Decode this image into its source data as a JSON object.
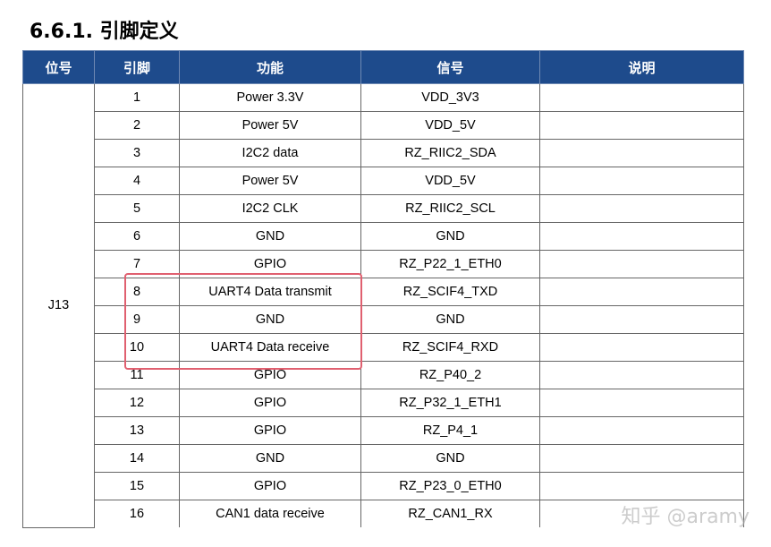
{
  "heading": "6.6.1. 引脚定义",
  "table": {
    "headers": [
      "位号",
      "引脚",
      "功能",
      "信号",
      "说明"
    ],
    "location": "J13",
    "rows": [
      {
        "pin": "1",
        "function": "Power 3.3V",
        "signal": "VDD_3V3",
        "note": ""
      },
      {
        "pin": "2",
        "function": "Power 5V",
        "signal": "VDD_5V",
        "note": ""
      },
      {
        "pin": "3",
        "function": "I2C2 data",
        "signal": "RZ_RIIC2_SDA",
        "note": ""
      },
      {
        "pin": "4",
        "function": "Power 5V",
        "signal": "VDD_5V",
        "note": ""
      },
      {
        "pin": "5",
        "function": "I2C2 CLK",
        "signal": "RZ_RIIC2_SCL",
        "note": ""
      },
      {
        "pin": "6",
        "function": "GND",
        "signal": "GND",
        "note": ""
      },
      {
        "pin": "7",
        "function": "GPIO",
        "signal": "RZ_P22_1_ETH0",
        "note": ""
      },
      {
        "pin": "8",
        "function": "UART4 Data transmit",
        "signal": "RZ_SCIF4_TXD",
        "note": ""
      },
      {
        "pin": "9",
        "function": "GND",
        "signal": "GND",
        "note": ""
      },
      {
        "pin": "10",
        "function": "UART4 Data receive",
        "signal": "RZ_SCIF4_RXD",
        "note": ""
      },
      {
        "pin": "11",
        "function": "GPIO",
        "signal": "RZ_P40_2",
        "note": ""
      },
      {
        "pin": "12",
        "function": "GPIO",
        "signal": "RZ_P32_1_ETH1",
        "note": ""
      },
      {
        "pin": "13",
        "function": "GPIO",
        "signal": "RZ_P4_1",
        "note": ""
      },
      {
        "pin": "14",
        "function": "GND",
        "signal": "GND",
        "note": ""
      },
      {
        "pin": "15",
        "function": "GPIO",
        "signal": "RZ_P23_0_ETH0",
        "note": ""
      },
      {
        "pin": "16",
        "function": "CAN1 data receive",
        "signal": "RZ_CAN1_RX",
        "note": ""
      }
    ]
  },
  "highlight_color": "#e06070",
  "header_color": "#1e4b8c",
  "watermark": "知乎 @aramy"
}
